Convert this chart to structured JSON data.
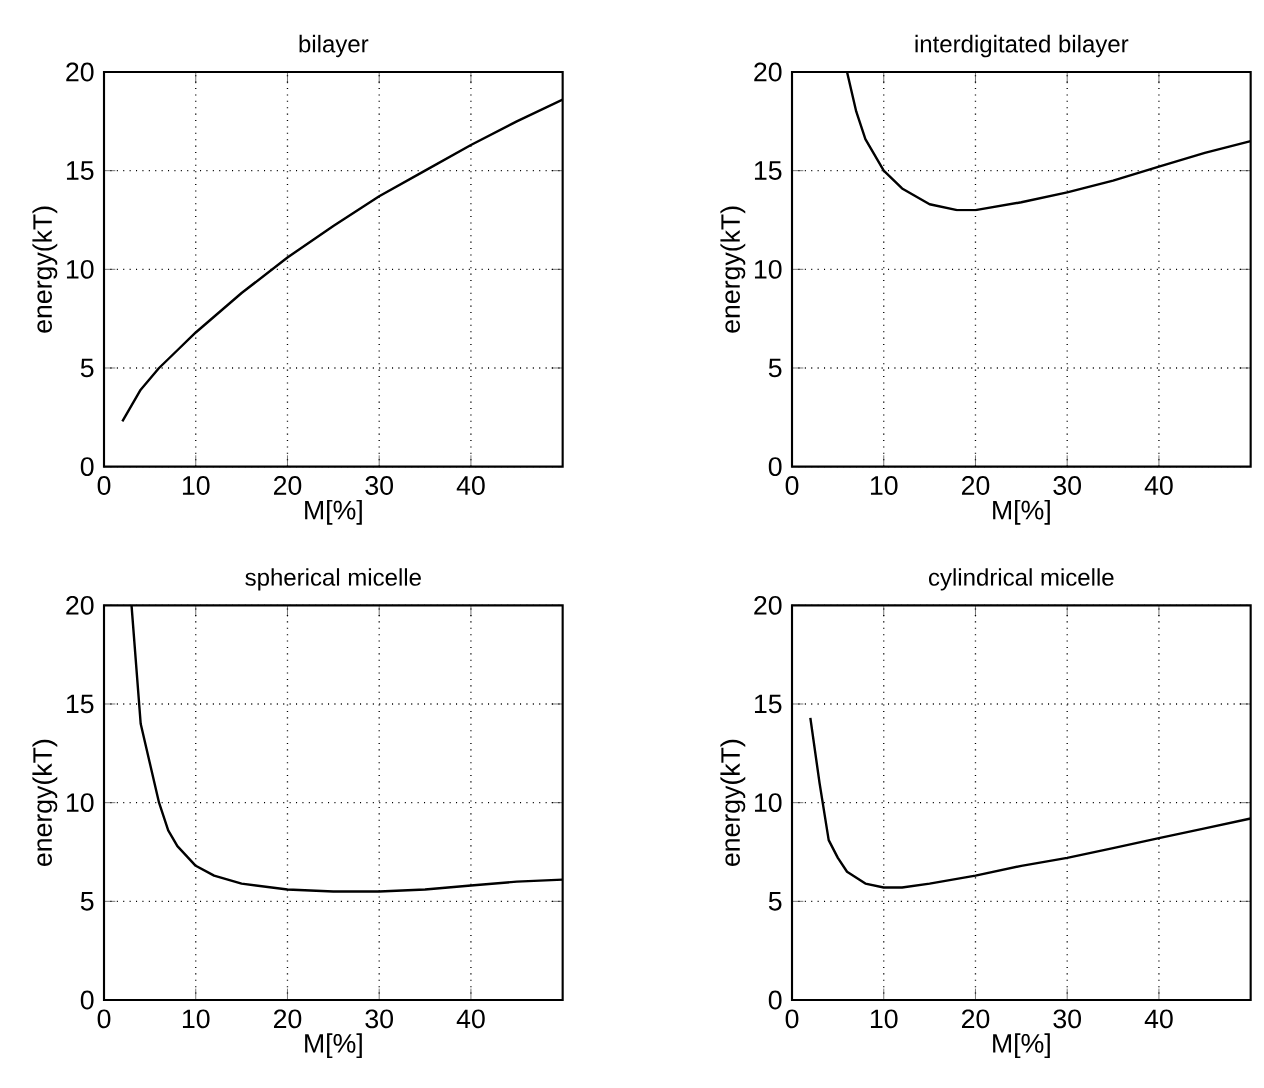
{
  "chart_data": [
    {
      "type": "line",
      "title": "bilayer",
      "xlabel": "M[%]",
      "ylabel": "energy(kT)",
      "xlim": [
        0,
        50
      ],
      "ylim": [
        0,
        20
      ],
      "xticks": [
        0,
        10,
        20,
        30,
        40
      ],
      "yticks": [
        0,
        5,
        10,
        15,
        20
      ],
      "grid": true,
      "marker": "none",
      "line_style": "solid",
      "series": [
        {
          "color": "#000000",
          "x": [
            2,
            4,
            6,
            8,
            10,
            15,
            20,
            25,
            30,
            35,
            40,
            45,
            50
          ],
          "values": [
            2.3,
            3.9,
            5.0,
            5.9,
            6.8,
            8.8,
            10.6,
            12.2,
            13.7,
            15.0,
            16.3,
            17.5,
            18.6
          ]
        }
      ]
    },
    {
      "type": "line",
      "title": "interdigitated bilayer",
      "xlabel": "M[%]",
      "ylabel": "energy(kT)",
      "xlim": [
        0,
        50
      ],
      "ylim": [
        0,
        20
      ],
      "xticks": [
        0,
        10,
        20,
        30,
        40
      ],
      "yticks": [
        0,
        5,
        10,
        15,
        20
      ],
      "grid": true,
      "marker": "none",
      "line_style": "solid",
      "series": [
        {
          "color": "#000000",
          "x": [
            6,
            7,
            8,
            10,
            12,
            15,
            18,
            20,
            25,
            30,
            35,
            40,
            45,
            50
          ],
          "values": [
            20,
            18,
            16.6,
            15.0,
            14.1,
            13.3,
            13.0,
            13.0,
            13.4,
            13.9,
            14.5,
            15.2,
            15.9,
            16.5
          ]
        }
      ]
    },
    {
      "type": "line",
      "title": "spherical micelle",
      "xlabel": "M[%]",
      "ylabel": "energy(kT)",
      "xlim": [
        0,
        50
      ],
      "ylim": [
        0,
        20
      ],
      "xticks": [
        0,
        10,
        20,
        30,
        40
      ],
      "yticks": [
        0,
        5,
        10,
        15,
        20
      ],
      "grid": true,
      "marker": "none",
      "line_style": "solid",
      "series": [
        {
          "color": "#000000",
          "x": [
            3,
            4,
            5,
            6,
            7,
            8,
            10,
            12,
            15,
            20,
            25,
            30,
            35,
            40,
            45,
            50
          ],
          "values": [
            20,
            14,
            12,
            10,
            8.6,
            7.8,
            6.8,
            6.3,
            5.9,
            5.6,
            5.5,
            5.5,
            5.6,
            5.8,
            6.0,
            6.1
          ]
        }
      ]
    },
    {
      "type": "line",
      "title": "cylindrical micelle",
      "xlabel": "M[%]",
      "ylabel": "energy(kT)",
      "xlim": [
        0,
        50
      ],
      "ylim": [
        0,
        20
      ],
      "xticks": [
        0,
        10,
        20,
        30,
        40
      ],
      "yticks": [
        0,
        5,
        10,
        15,
        20
      ],
      "grid": true,
      "marker": "none",
      "line_style": "solid",
      "series": [
        {
          "color": "#000000",
          "x": [
            2,
            3,
            4,
            5,
            6,
            8,
            10,
            12,
            15,
            20,
            25,
            30,
            35,
            40,
            45,
            50
          ],
          "values": [
            14.3,
            11,
            8.1,
            7.2,
            6.5,
            5.9,
            5.7,
            5.7,
            5.9,
            6.3,
            6.8,
            7.2,
            7.7,
            8.2,
            8.7,
            9.2
          ]
        }
      ]
    }
  ]
}
